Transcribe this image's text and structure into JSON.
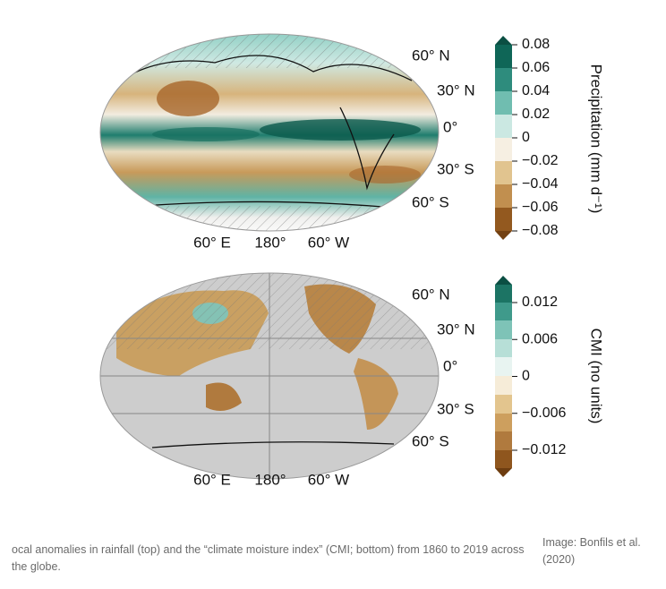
{
  "top_map": {
    "lat_labels": [
      "60° N",
      "30° N",
      "0°",
      "30° S",
      "60° S"
    ],
    "lon_labels": [
      "60° E",
      "180°",
      "60° W"
    ],
    "colorbar_ticks": [
      "0.08",
      "0.06",
      "0.04",
      "0.02",
      "0",
      "−0.02",
      "−0.04",
      "−0.06",
      "−0.08"
    ],
    "colorbar_label": "Precipitation (mm d⁻¹)"
  },
  "bottom_map": {
    "lat_labels": [
      "60° N",
      "30° N",
      "0°",
      "30° S",
      "60° S"
    ],
    "lon_labels": [
      "60° E",
      "180°",
      "60° W"
    ],
    "colorbar_ticks": [
      "0.012",
      "0.006",
      "0",
      "−0.006",
      "−0.012"
    ],
    "colorbar_label": "CMI (no units)"
  },
  "caption": "ocal anomalies in rainfall (top) and the “climate moisture index” (CMI; bottom) from 1860 to 2019 across the globe.",
  "credit": "Image: Bonfils et al. (2020)"
}
